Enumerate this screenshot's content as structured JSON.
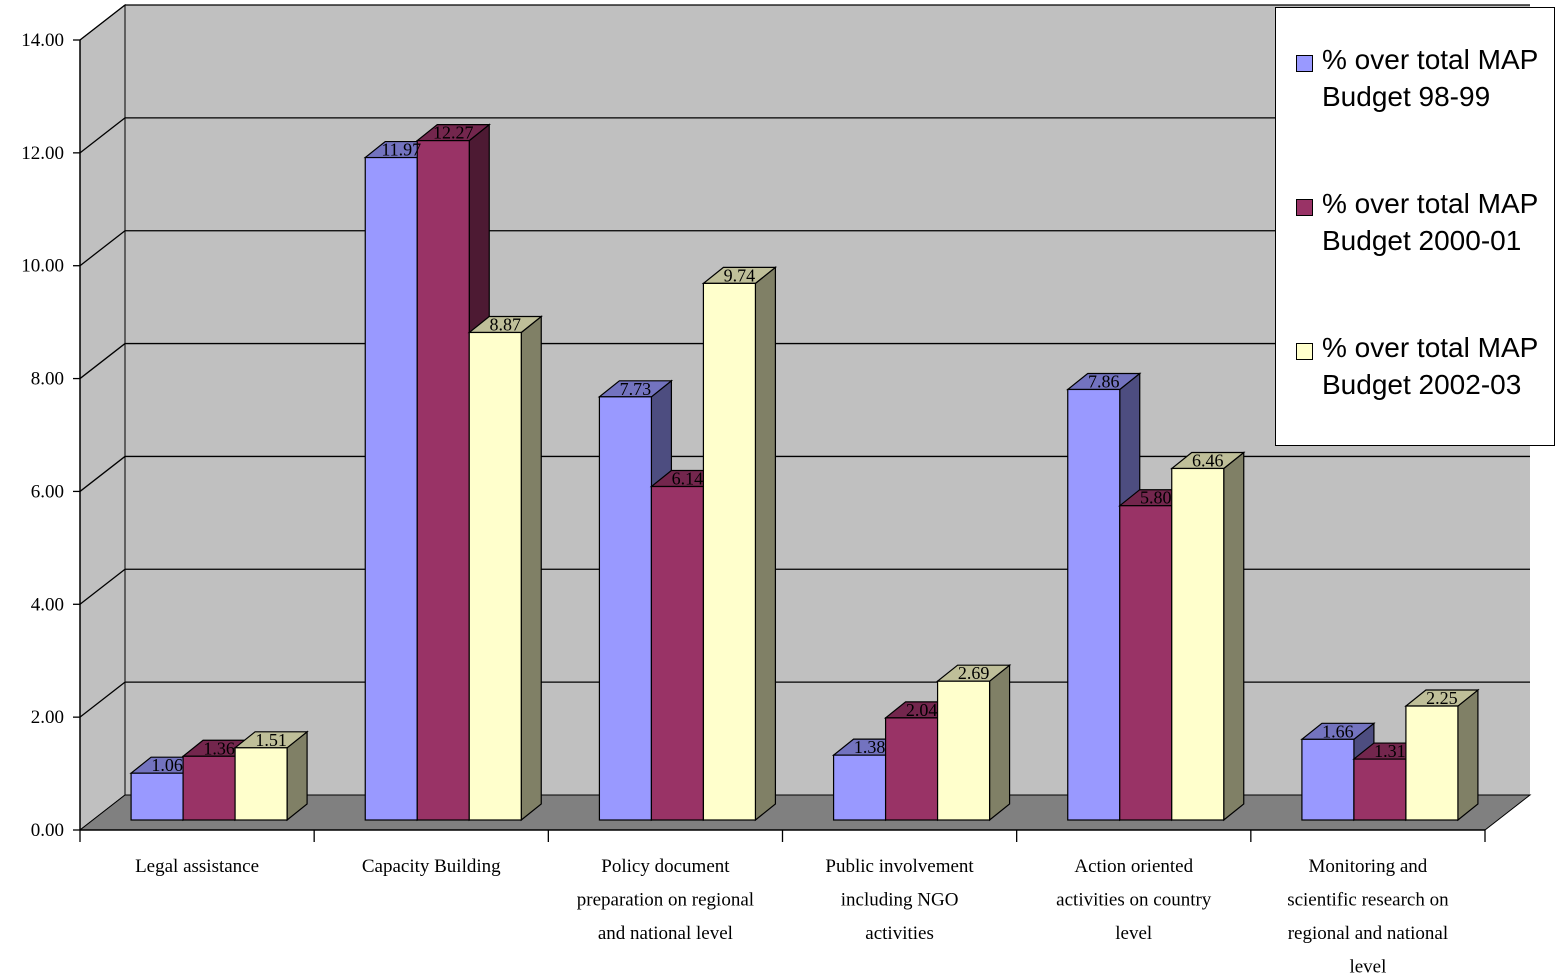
{
  "chart_data": {
    "type": "bar",
    "style": "3d-clustered-column",
    "categories": [
      "Legal assistance",
      "Capacity Building",
      "Policy document preparation on regional and national level",
      "Public involvement including NGO activities",
      "Action oriented activities on country level",
      "Monitoring and scientific research on regional and national level"
    ],
    "category_lines": [
      [
        "Legal assistance"
      ],
      [
        "Capacity Building"
      ],
      [
        "Policy document",
        "preparation on regional",
        "and national level"
      ],
      [
        "Public involvement",
        "including NGO",
        "activities"
      ],
      [
        "Action oriented",
        "activities on country",
        "level"
      ],
      [
        "Monitoring and",
        "scientific research on",
        "regional and national",
        "level"
      ]
    ],
    "series": [
      {
        "name": "% over total MAP Budget 98-99",
        "values": [
          1.06,
          11.97,
          7.73,
          1.38,
          7.86,
          1.66
        ],
        "labels": [
          "1.06",
          "11.97",
          "7.73",
          "1.38",
          "7.86",
          "1.66"
        ],
        "color": "#9999ff"
      },
      {
        "name": "% over total MAP Budget 2000-01",
        "values": [
          1.36,
          12.27,
          6.14,
          2.04,
          5.8,
          1.31
        ],
        "labels": [
          "1.36",
          "12.27",
          "6.14",
          "2.04",
          "5.80",
          "1.31"
        ],
        "color": "#993366"
      },
      {
        "name": "% over total MAP Budget 2002-03",
        "values": [
          1.51,
          8.87,
          9.74,
          2.69,
          6.46,
          2.25
        ],
        "labels": [
          "1.51",
          "8.87",
          "9.74",
          "2.69",
          "6.46",
          "2.25"
        ],
        "color": "#ffffcc"
      }
    ],
    "y_ticks": [
      "0.00",
      "2.00",
      "4.00",
      "6.00",
      "8.00",
      "10.00",
      "12.00",
      "14.00"
    ],
    "ylim": [
      0,
      14
    ],
    "grid": true,
    "wall_color": "#c0c0c0",
    "floor_color": "#808080",
    "legend_position": "top-right",
    "title": "",
    "xlabel": "",
    "ylabel": ""
  }
}
